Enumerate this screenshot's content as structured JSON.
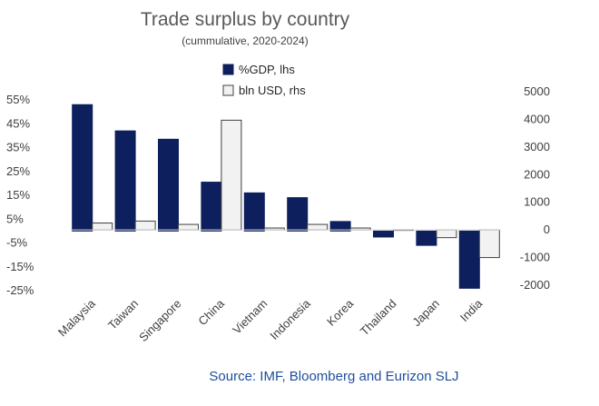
{
  "chart_data": {
    "type": "bar",
    "title": "Trade surplus by country",
    "subtitle": "(cummulative, 2020-2024)",
    "categories": [
      "Malaysia",
      "Taiwan",
      "Singapore",
      "China",
      "Vietnam",
      "Indonesia",
      "Korea",
      "Thailand",
      "Japan",
      "India"
    ],
    "series": [
      {
        "name": "%GDP, lhs",
        "axis": "left",
        "color": "#0d1f5c",
        "values": [
          53,
          42,
          38.5,
          20.5,
          16,
          14,
          4,
          -2.5,
          -6,
          -24
        ]
      },
      {
        "name": "bln USD, rhs",
        "axis": "right",
        "color": "#f2f2f2",
        "values": [
          250,
          320,
          200,
          3970,
          70,
          200,
          70,
          0,
          -280,
          -1000
        ]
      }
    ],
    "left_axis": {
      "min": -25,
      "max": 55,
      "ticks": [
        55,
        45,
        35,
        25,
        15,
        5,
        -5,
        -15,
        -25
      ],
      "tick_labels": [
        "55%",
        "45%",
        "35%",
        "25%",
        "15%",
        "5%",
        "-5%",
        "-15%",
        "-25%"
      ]
    },
    "right_axis": {
      "min": -2000,
      "max": 5000,
      "ticks": [
        5000,
        4000,
        3000,
        2000,
        1000,
        0,
        -1000,
        -2000
      ],
      "tick_labels": [
        "5000",
        "4000",
        "3000",
        "2000",
        "1000",
        "0",
        "-1000",
        "-2000"
      ]
    },
    "grid": false,
    "legend_position": "top-center"
  },
  "source": "Source: IMF, Bloomberg and Eurizon SLJ"
}
